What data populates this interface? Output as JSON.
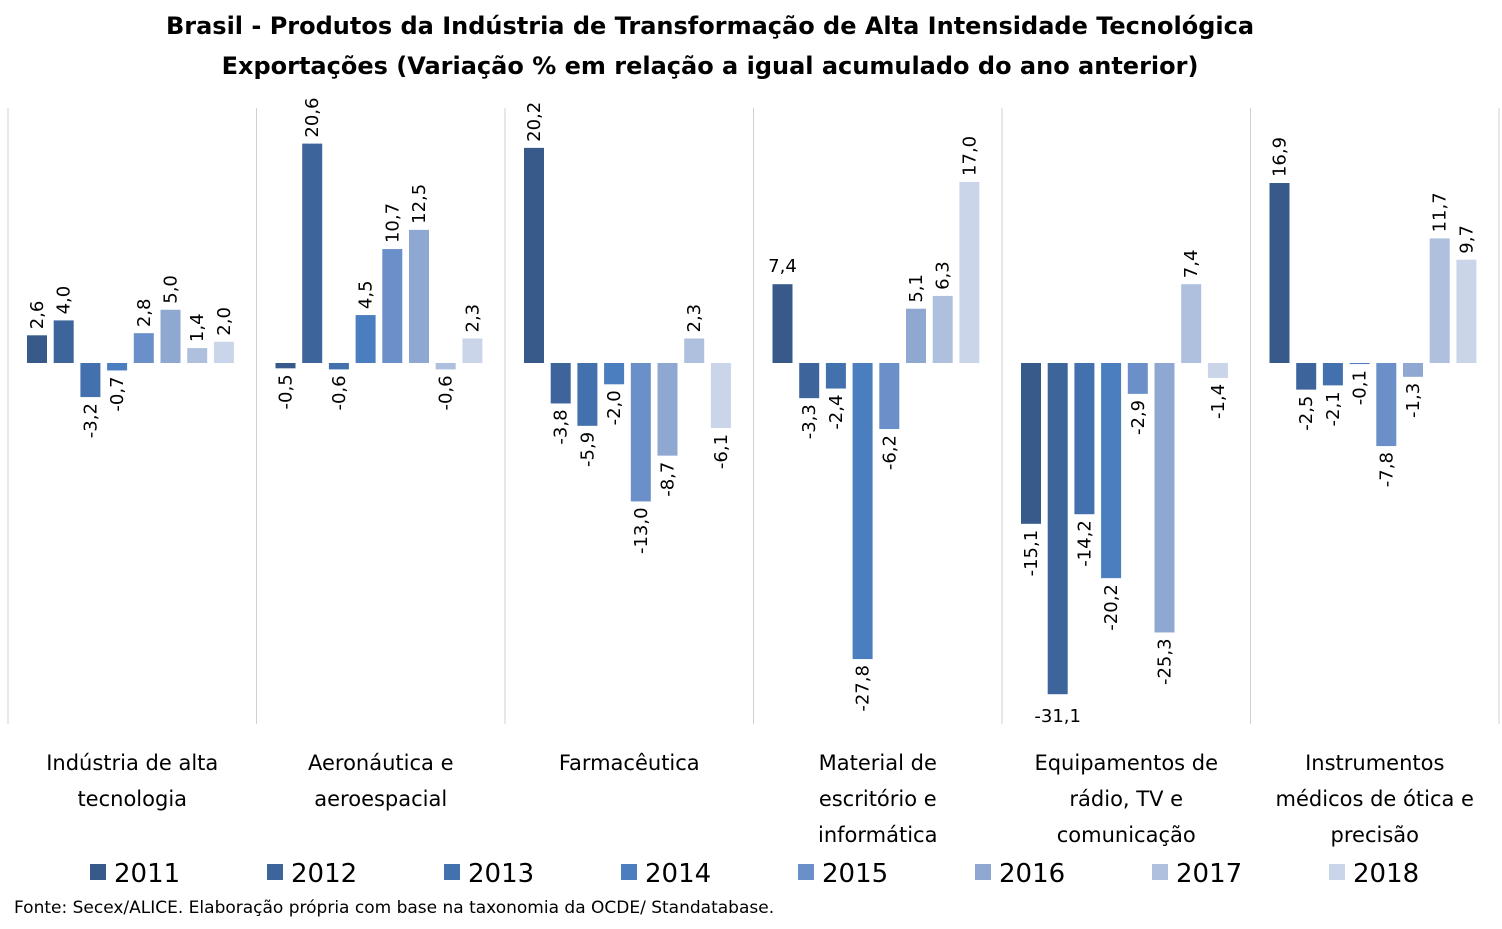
{
  "chart_data": {
    "type": "bar",
    "title": "Brasil - Produtos da Indústria de Transformação de Alta Intensidade Tecnológica",
    "subtitle": "Exportações (Variação % em relação a igual acumulado do ano anterior)",
    "categories": [
      [
        "Indústria de alta",
        "tecnologia"
      ],
      [
        "Aeronáutica e",
        "aeroespacial"
      ],
      [
        "Farmacêutica"
      ],
      [
        "Material de",
        "escritório e",
        "informática"
      ],
      [
        "Equipamentos de",
        "rádio, TV e",
        "comunicação"
      ],
      [
        "Instrumentos",
        "médicos de ótica e",
        "precisão"
      ]
    ],
    "series": [
      {
        "name": "2011",
        "color": "#375a8a",
        "values": [
          2.6,
          -0.5,
          20.2,
          7.4,
          -15.1,
          16.9
        ]
      },
      {
        "name": "2012",
        "color": "#3d659c",
        "values": [
          4.0,
          20.6,
          -3.8,
          -3.3,
          -31.1,
          -2.5
        ]
      },
      {
        "name": "2013",
        "color": "#4371ae",
        "values": [
          -3.2,
          -0.6,
          -5.9,
          -2.4,
          -14.2,
          -2.1
        ]
      },
      {
        "name": "2014",
        "color": "#4a7ebf",
        "values": [
          -0.7,
          4.5,
          -2.0,
          -27.8,
          -20.2,
          -0.1
        ]
      },
      {
        "name": "2015",
        "color": "#6b90c9",
        "values": [
          2.8,
          10.7,
          -13.0,
          -6.2,
          -2.9,
          -7.8
        ]
      },
      {
        "name": "2016",
        "color": "#8fa8d2",
        "values": [
          5.0,
          12.5,
          -8.7,
          5.1,
          -25.3,
          -1.3
        ]
      },
      {
        "name": "2017",
        "color": "#afc0de",
        "values": [
          1.4,
          -0.6,
          2.3,
          6.3,
          7.4,
          11.7
        ]
      },
      {
        "name": "2018",
        "color": "#cad5e9",
        "values": [
          2.0,
          2.3,
          -6.1,
          17.0,
          -1.4,
          9.7
        ]
      }
    ],
    "ylim": [
      -33,
      24
    ],
    "grid": false,
    "legend": "bottom",
    "xlabel": "",
    "ylabel": ""
  },
  "source": "Fonte: Secex/ALICE. Elaboração própria com base na taxonomia da OCDE/ Standatabase."
}
